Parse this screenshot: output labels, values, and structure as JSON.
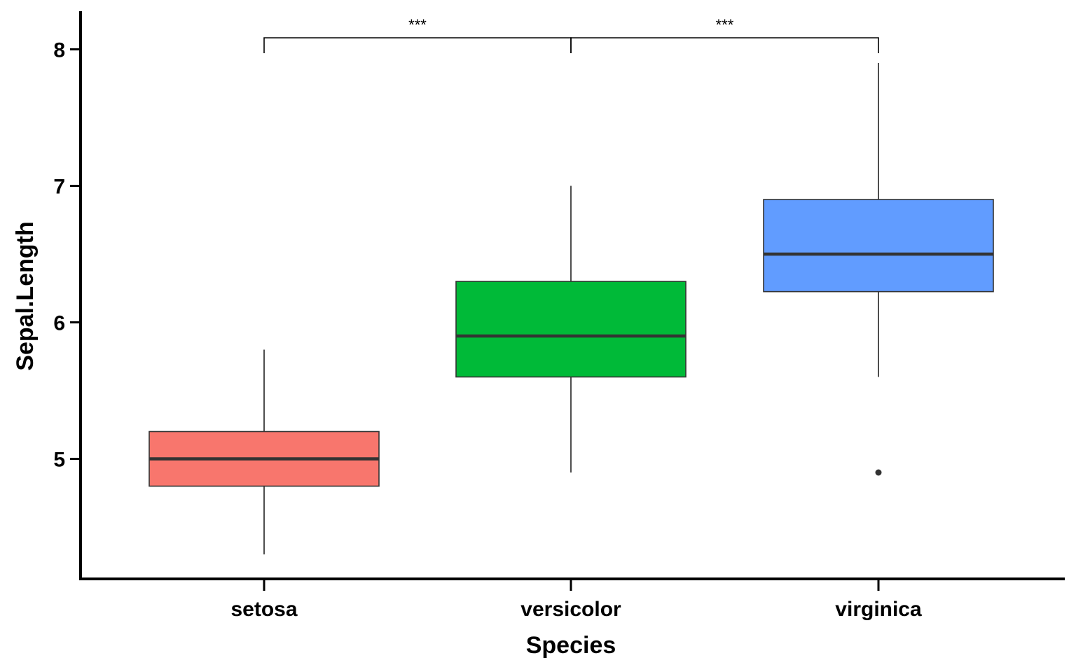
{
  "chart_data": {
    "type": "box",
    "title": "",
    "xlabel": "Species",
    "ylabel": "Sepal.Length",
    "ylim": [
      4.08,
      8.28
    ],
    "yticks": [
      5,
      6,
      7,
      8
    ],
    "grid": false,
    "legend": "none",
    "categories": [
      "setosa",
      "versicolor",
      "virginica"
    ],
    "boxes": [
      {
        "category": "setosa",
        "color": "#F8766D",
        "whisker_low": 4.3,
        "q1": 4.8,
        "median": 5.0,
        "q3": 5.2,
        "whisker_high": 5.8,
        "outliers": []
      },
      {
        "category": "versicolor",
        "color": "#00BA38",
        "whisker_low": 4.9,
        "q1": 5.6,
        "median": 5.9,
        "q3": 6.3,
        "whisker_high": 7.0,
        "outliers": []
      },
      {
        "category": "virginica",
        "color": "#619CFF",
        "whisker_low": 5.6,
        "q1": 6.225,
        "median": 6.5,
        "q3": 6.9,
        "whisker_high": 7.9,
        "outliers": [
          4.9
        ]
      }
    ],
    "comparisons": [
      {
        "groups": [
          "setosa",
          "versicolor"
        ],
        "label": "***"
      },
      {
        "groups": [
          "versicolor",
          "virginica"
        ],
        "label": "***"
      }
    ]
  }
}
